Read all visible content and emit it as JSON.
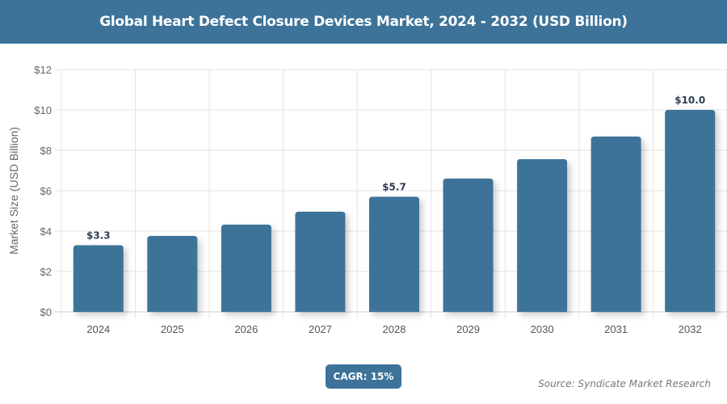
{
  "title": "Global Heart Defect Closure Devices Market, 2024 - 2032 (USD Billion)",
  "cagr_label": "CAGR: 15%",
  "source": "Source: Syndicate Market Research",
  "colors": {
    "bar": "#3d7399",
    "header": "#3d7399"
  },
  "chart_data": {
    "type": "bar",
    "title": "Global Heart Defect Closure Devices Market, 2024 - 2032 (USD Billion)",
    "xlabel": "",
    "ylabel": "Market Size (USD Billion)",
    "categories": [
      "2024",
      "2025",
      "2026",
      "2027",
      "2028",
      "2029",
      "2030",
      "2031",
      "2032"
    ],
    "values": [
      3.3,
      3.76,
      4.32,
      4.96,
      5.7,
      6.6,
      7.56,
      8.68,
      10.0
    ],
    "data_labels": {
      "2024": "$3.3",
      "2028": "$5.7",
      "2032": "$10.0"
    },
    "ylim": [
      0,
      12
    ],
    "yticks": [
      "$0",
      "$2",
      "$4",
      "$6",
      "$8",
      "$10",
      "$12"
    ],
    "grid": true,
    "legend": "none"
  }
}
